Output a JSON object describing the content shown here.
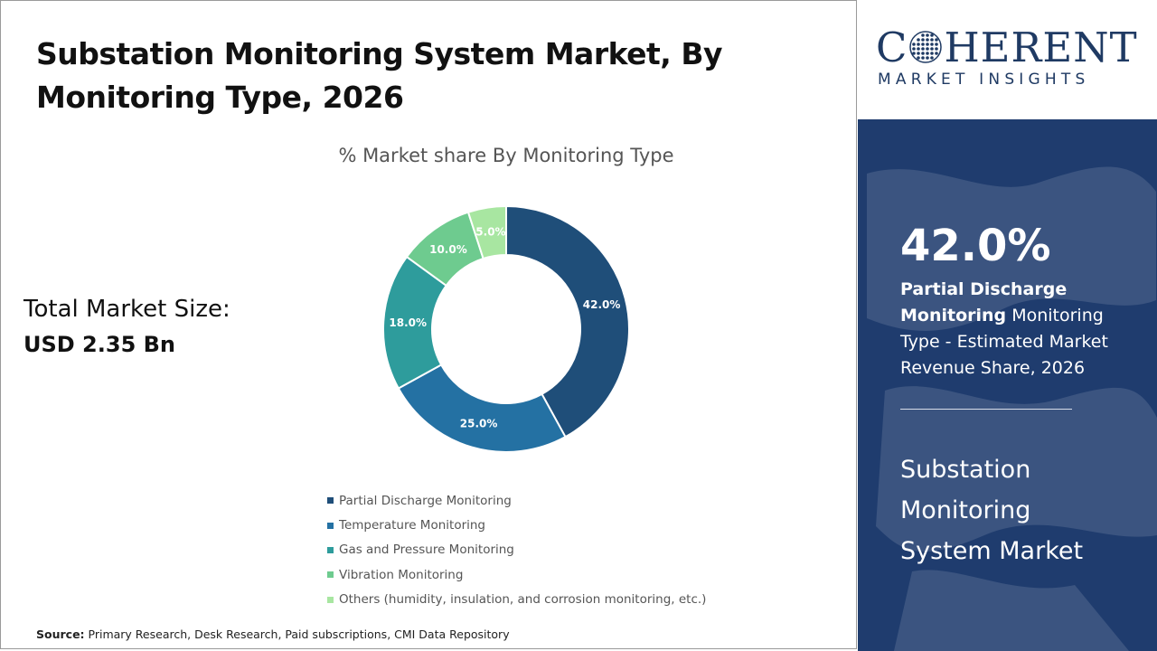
{
  "header": {
    "title": "Substation Monitoring System Market, By Monitoring Type, 2026"
  },
  "total_market": {
    "label": "Total Market Size:",
    "value": "USD 2.35 Bn"
  },
  "source": {
    "label": "Source:",
    "text": "Primary Research, Desk Research, Paid subscriptions, CMI Data Repository"
  },
  "brand": {
    "name_prefix": "C",
    "name_suffix": "HERENT",
    "tagline": "MARKET INSIGHTS"
  },
  "panel": {
    "highlight_value": "42.0%",
    "highlight_segment": "Partial Discharge Monitoring",
    "highlight_text": "Monitoring Type - Estimated Market Revenue Share, 2026",
    "market_name": "Substation Monitoring System Market"
  },
  "colors": {
    "panel_bg": "#1f3c6e",
    "brand": "#1f3a63"
  },
  "chart_data": {
    "type": "pie",
    "title": "% Market share By Monitoring Type",
    "donut": true,
    "legend_position": "bottom",
    "categories": [
      "Partial Discharge Monitoring",
      "Temperature Monitoring",
      "Gas and Pressure Monitoring",
      "Vibration Monitoring",
      "Others (humidity, insulation, and corrosion monitoring, etc.)"
    ],
    "values": [
      42.0,
      25.0,
      18.0,
      10.0,
      5.0
    ],
    "labels": [
      "42.0%",
      "25.0%",
      "18.0%",
      "10.0%",
      "5.0%"
    ],
    "colors": [
      "#1f4e79",
      "#2471a3",
      "#2e9c9c",
      "#6ecb8f",
      "#a8e6a1"
    ]
  }
}
